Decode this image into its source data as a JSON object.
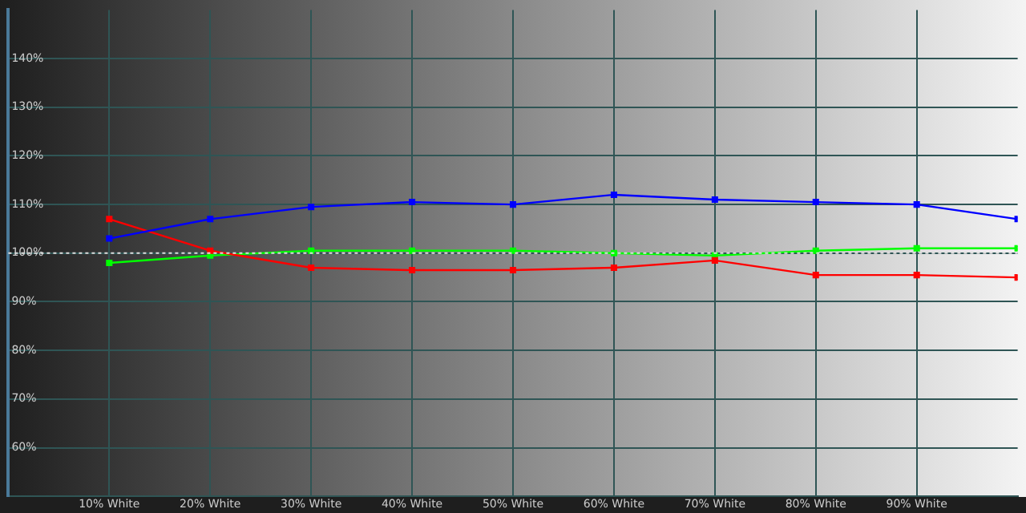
{
  "chart_data": {
    "type": "line",
    "x": [
      10,
      20,
      30,
      40,
      50,
      60,
      70,
      80,
      90,
      100
    ],
    "xlim": [
      0,
      100
    ],
    "xticks": [
      {
        "value": 10,
        "label": "10% White"
      },
      {
        "value": 20,
        "label": "20% White"
      },
      {
        "value": 30,
        "label": "30% White"
      },
      {
        "value": 40,
        "label": "40% White"
      },
      {
        "value": 50,
        "label": "50% White"
      },
      {
        "value": 60,
        "label": "60% White"
      },
      {
        "value": 70,
        "label": "70% White"
      },
      {
        "value": 80,
        "label": "80% White"
      },
      {
        "value": 90,
        "label": "90% White"
      }
    ],
    "ylim": [
      50,
      150
    ],
    "yticks": [
      {
        "value": 60,
        "label": "60%"
      },
      {
        "value": 70,
        "label": "70%"
      },
      {
        "value": 80,
        "label": "80%"
      },
      {
        "value": 90,
        "label": "90%"
      },
      {
        "value": 100,
        "label": "100%"
      },
      {
        "value": 110,
        "label": "110%"
      },
      {
        "value": 120,
        "label": "120%"
      },
      {
        "value": 130,
        "label": "130%"
      },
      {
        "value": 140,
        "label": "140%"
      }
    ],
    "grid": true,
    "legend": false,
    "marker": "square",
    "line_style": "solid",
    "ref_lines": [
      {
        "axis": "y",
        "value": 100,
        "color": "#dddddd",
        "line_style": "dotted"
      }
    ],
    "series": [
      {
        "color": "#0000ff",
        "values": [
          103,
          107,
          109.5,
          110.5,
          110,
          112,
          111,
          110.5,
          110,
          107
        ]
      },
      {
        "color": "#ff0000",
        "values": [
          107,
          100.5,
          97,
          96.5,
          96.5,
          97,
          98.5,
          95.5,
          95.5,
          95
        ]
      },
      {
        "color": "#00ff00",
        "values": [
          98,
          99.5,
          100.5,
          100.5,
          100.5,
          100,
          99.5,
          100.5,
          101,
          101
        ]
      }
    ]
  }
}
